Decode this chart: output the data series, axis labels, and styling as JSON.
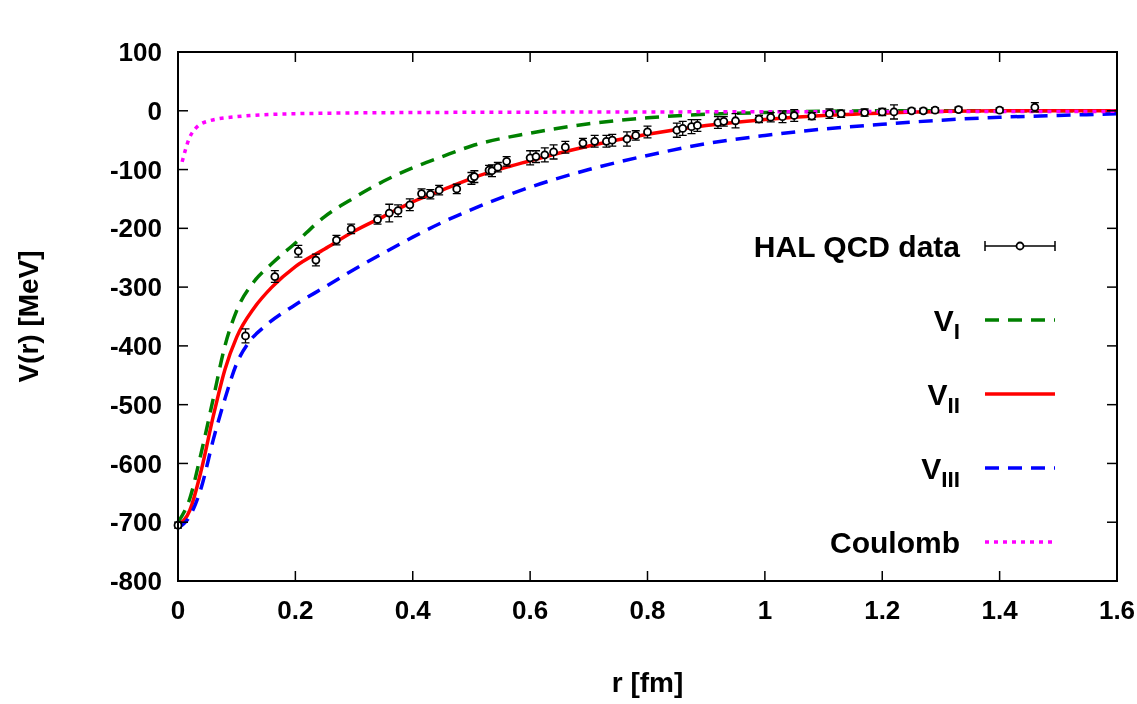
{
  "chart_data": {
    "type": "line",
    "xlabel": "r [fm]",
    "ylabel": "V(r) [MeV]",
    "xlim": [
      0,
      1.6
    ],
    "xticks": [
      0,
      0.2,
      0.4,
      0.6,
      0.8,
      1,
      1.2,
      1.4,
      1.6
    ],
    "ylim": [
      -800,
      100
    ],
    "yticks": [
      -800,
      -700,
      -600,
      -500,
      -400,
      -300,
      -200,
      -100,
      0,
      100
    ],
    "legend": "right",
    "grid": false,
    "series": [
      {
        "name": "HAL QCD data",
        "type": "scatter",
        "marker": "circle",
        "color": "#000000",
        "x": [
          0,
          0.115,
          0.165,
          0.205,
          0.235,
          0.27,
          0.295,
          0.34,
          0.36,
          0.375,
          0.395,
          0.415,
          0.43,
          0.445,
          0.475,
          0.5,
          0.505,
          0.53,
          0.535,
          0.545,
          0.56,
          0.6,
          0.61,
          0.625,
          0.64,
          0.66,
          0.69,
          0.71,
          0.73,
          0.74,
          0.765,
          0.78,
          0.8,
          0.85,
          0.86,
          0.875,
          0.885,
          0.92,
          0.93,
          0.95,
          0.99,
          1.01,
          1.03,
          1.05,
          1.08,
          1.11,
          1.13,
          1.17,
          1.2,
          1.22,
          1.25,
          1.27,
          1.29,
          1.33,
          1.4,
          1.46
        ],
        "values": [
          -705,
          -383,
          -282,
          -239,
          -254,
          -220,
          -201,
          -185,
          -174,
          -170,
          -160,
          -141,
          -142,
          -135,
          -133,
          -115,
          -112,
          -101,
          -102,
          -96,
          -86,
          -80,
          -78,
          -75,
          -70,
          -62,
          -55,
          -52,
          -52,
          -50,
          -48,
          -42,
          -36,
          -33,
          -30,
          -27,
          -25,
          -20,
          -18,
          -17,
          -14,
          -11,
          -10,
          -8,
          -9,
          -5,
          -5,
          -3,
          -2,
          -2,
          0,
          0,
          1,
          2,
          1,
          6
        ],
        "errors": [
          5,
          12,
          10,
          10,
          10,
          8,
          8,
          8,
          15,
          10,
          10,
          8,
          8,
          8,
          8,
          10,
          10,
          8,
          10,
          8,
          8,
          12,
          10,
          12,
          12,
          10,
          8,
          10,
          10,
          10,
          12,
          8,
          10,
          12,
          12,
          12,
          10,
          10,
          8,
          12,
          6,
          8,
          10,
          10,
          6,
          8,
          6,
          6,
          6,
          12,
          4,
          4,
          4,
          4,
          4,
          8
        ]
      },
      {
        "name": "V$_{I}$",
        "type": "line",
        "line_style": "dashed",
        "color": "#008000",
        "x": [
          0,
          0.02,
          0.04,
          0.06,
          0.08,
          0.1,
          0.13,
          0.16,
          0.2,
          0.25,
          0.3,
          0.35,
          0.4,
          0.45,
          0.5,
          0.6,
          0.7,
          0.8,
          0.9,
          1,
          1.2,
          1.6
        ],
        "values": [
          -700,
          -660,
          -580,
          -490,
          -400,
          -340,
          -290,
          -260,
          -225,
          -180,
          -148,
          -120,
          -97,
          -78,
          -60,
          -38,
          -22,
          -12,
          -6,
          -3,
          0,
          0
        ]
      },
      {
        "name": "V$_{II}$",
        "type": "line",
        "line_style": "solid",
        "color": "#ff0000",
        "x": [
          0,
          0.02,
          0.04,
          0.06,
          0.08,
          0.1,
          0.13,
          0.16,
          0.2,
          0.25,
          0.3,
          0.35,
          0.4,
          0.45,
          0.5,
          0.6,
          0.7,
          0.8,
          0.9,
          1,
          1.1,
          1.2,
          1.4,
          1.6
        ],
        "values": [
          -705,
          -680,
          -610,
          -520,
          -440,
          -385,
          -335,
          -300,
          -265,
          -235,
          -205,
          -180,
          -155,
          -135,
          -115,
          -85,
          -60,
          -40,
          -25,
          -15,
          -8,
          -4,
          0,
          0
        ]
      },
      {
        "name": "V$_{III}$",
        "type": "line",
        "line_style": "dashed",
        "color": "#0000ff",
        "x": [
          0,
          0.02,
          0.04,
          0.06,
          0.08,
          0.1,
          0.12,
          0.15,
          0.2,
          0.25,
          0.3,
          0.35,
          0.4,
          0.45,
          0.5,
          0.6,
          0.7,
          0.8,
          0.9,
          1,
          1.1,
          1.2,
          1.3,
          1.4,
          1.5,
          1.6
        ],
        "values": [
          -710,
          -690,
          -640,
          -560,
          -490,
          -430,
          -395,
          -365,
          -330,
          -300,
          -270,
          -242,
          -215,
          -190,
          -168,
          -130,
          -100,
          -76,
          -56,
          -42,
          -31,
          -23,
          -16,
          -11,
          -8,
          -5
        ]
      },
      {
        "name": "Coulomb",
        "type": "line",
        "line_style": "dotted",
        "color": "#ff00ff",
        "x": [
          0.007,
          0.02,
          0.03,
          0.05,
          0.1,
          0.2,
          0.4,
          0.8,
          1.6
        ],
        "values": [
          -87,
          -45,
          -30,
          -18,
          -10,
          -5,
          -3,
          -2,
          -1
        ]
      }
    ]
  }
}
